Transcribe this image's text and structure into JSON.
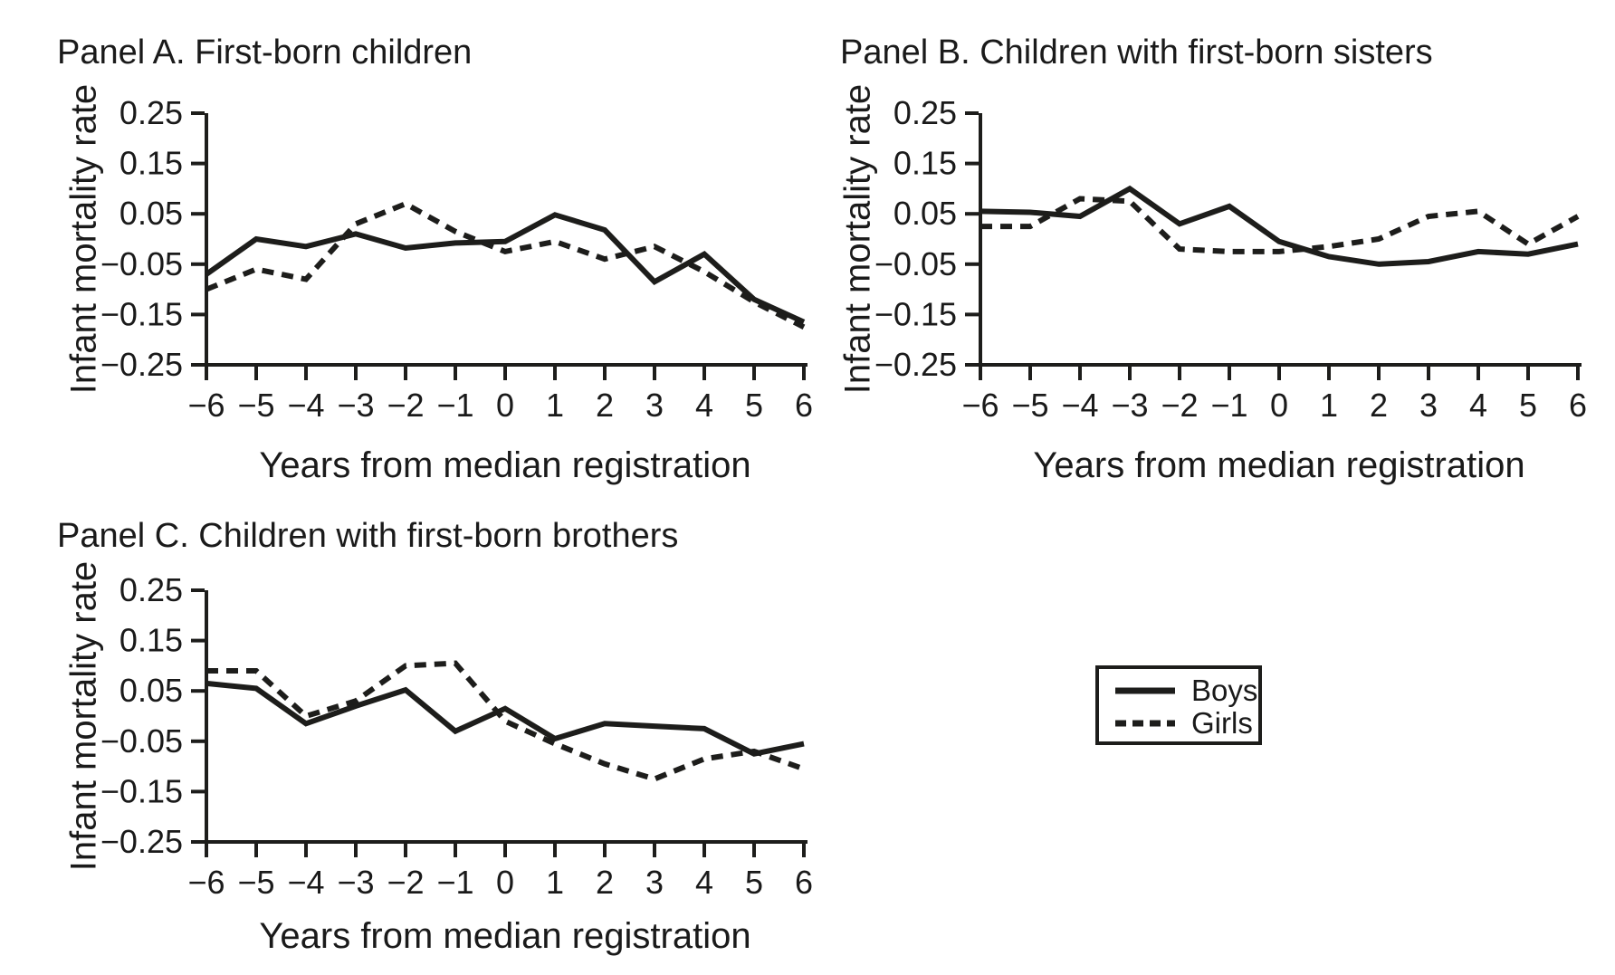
{
  "figure": {
    "background": "#ffffff",
    "colors": {
      "line": "#1d1d1b",
      "text": "#1a1a1a"
    },
    "legend": {
      "position": "bottom-right",
      "items": [
        {
          "label": "Boys",
          "line": "solid"
        },
        {
          "label": "Girls",
          "line": "dashed"
        }
      ]
    }
  },
  "chart_data": [
    {
      "type": "line",
      "title": "Panel A. First-born children",
      "xlabel": "Years from median registration",
      "ylabel": "Infant mortality rate",
      "ylim": [
        -0.25,
        0.25
      ],
      "yticks": [
        0.25,
        0.15,
        0.05,
        -0.05,
        -0.15,
        -0.25
      ],
      "x": [
        -6,
        -5,
        -4,
        -3,
        -2,
        -1,
        0,
        1,
        2,
        3,
        4,
        5,
        6
      ],
      "series": [
        {
          "name": "Boys",
          "line": "solid",
          "values": [
            -0.07,
            0.0,
            -0.015,
            0.01,
            -0.018,
            -0.008,
            -0.005,
            0.048,
            0.018,
            -0.085,
            -0.03,
            -0.12,
            -0.165
          ]
        },
        {
          "name": "Girls",
          "line": "dashed",
          "values": [
            -0.1,
            -0.06,
            -0.08,
            0.03,
            0.07,
            0.015,
            -0.025,
            -0.005,
            -0.04,
            -0.015,
            -0.065,
            -0.125,
            -0.175
          ]
        }
      ]
    },
    {
      "type": "line",
      "title": "Panel B. Children with first-born sisters",
      "xlabel": "Years from median registration",
      "ylabel": "Infant mortality rate",
      "ylim": [
        -0.25,
        0.25
      ],
      "yticks": [
        0.25,
        0.15,
        0.05,
        -0.05,
        -0.15,
        -0.25
      ],
      "x": [
        -6,
        -5,
        -4,
        -3,
        -2,
        -1,
        0,
        1,
        2,
        3,
        4,
        5,
        6
      ],
      "series": [
        {
          "name": "Boys",
          "line": "solid",
          "values": [
            0.055,
            0.053,
            0.045,
            0.1,
            0.03,
            0.065,
            -0.005,
            -0.035,
            -0.05,
            -0.045,
            -0.025,
            -0.03,
            -0.01
          ]
        },
        {
          "name": "Girls",
          "line": "dashed",
          "values": [
            0.025,
            0.025,
            0.08,
            0.075,
            -0.02,
            -0.025,
            -0.025,
            -0.015,
            0.0,
            0.045,
            0.055,
            -0.01,
            0.045
          ]
        }
      ]
    },
    {
      "type": "line",
      "title": "Panel C. Children with first-born brothers",
      "xlabel": "Years from median registration",
      "ylabel": "Infant mortality rate",
      "ylim": [
        -0.25,
        0.25
      ],
      "yticks": [
        0.25,
        0.15,
        0.05,
        -0.05,
        -0.15,
        -0.25
      ],
      "x": [
        -6,
        -5,
        -4,
        -3,
        -2,
        -1,
        0,
        1,
        2,
        3,
        4,
        5,
        6
      ],
      "series": [
        {
          "name": "Boys",
          "line": "solid",
          "values": [
            0.065,
            0.055,
            -0.015,
            0.02,
            0.052,
            -0.03,
            0.015,
            -0.045,
            -0.015,
            -0.02,
            -0.025,
            -0.075,
            -0.055
          ]
        },
        {
          "name": "Girls",
          "line": "dashed",
          "values": [
            0.09,
            0.09,
            0.0,
            0.03,
            0.1,
            0.105,
            -0.01,
            -0.055,
            -0.095,
            -0.125,
            -0.085,
            -0.07,
            -0.105
          ]
        }
      ]
    }
  ]
}
